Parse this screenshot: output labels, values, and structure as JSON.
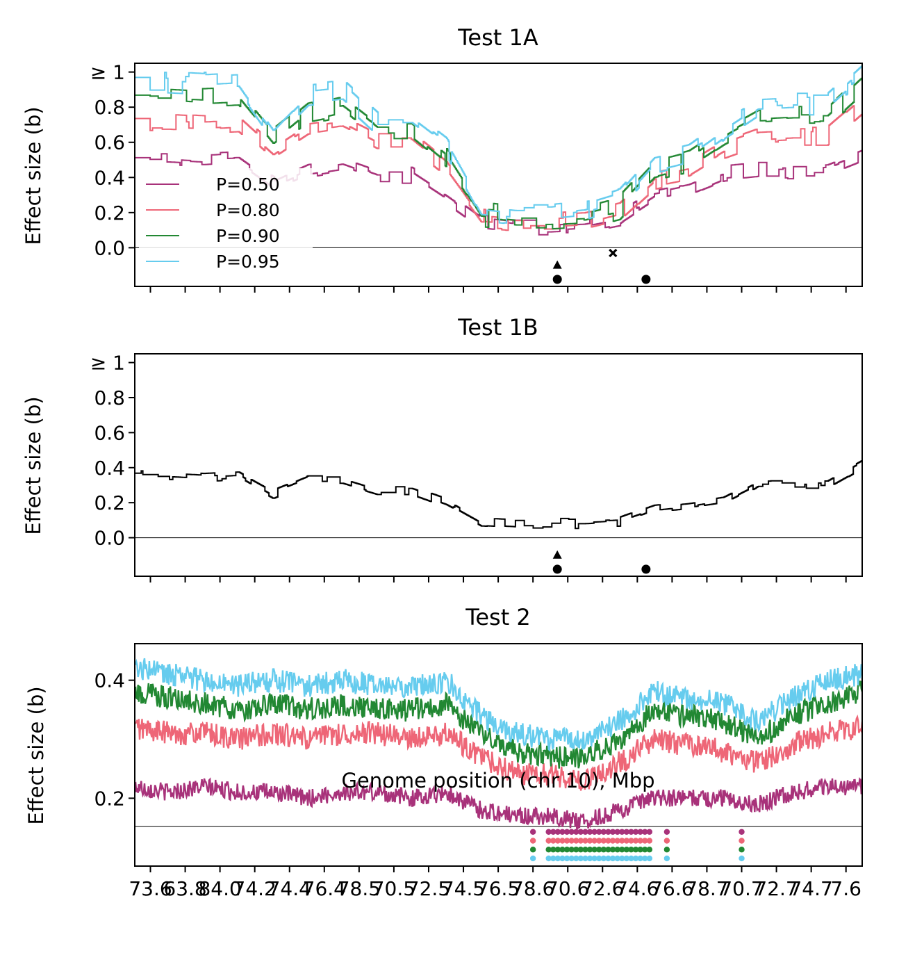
{
  "figure": {
    "xlabel": "Genome position (chr 10), Mbp",
    "x_ticks": [
      "73.6",
      "63.8",
      "84.0",
      "74.2",
      "74.4",
      "76.4",
      "78.5",
      "70.5",
      "72.5",
      "74.5",
      "76.5",
      "78.6",
      "70.6",
      "72.6",
      "74.6",
      "76.6",
      "78.7",
      "70.7",
      "72.7",
      "74.7",
      "7.6"
    ],
    "colors": {
      "p050": "#a8327a",
      "p080": "#ee6677",
      "p090": "#228833",
      "p095": "#66ccee",
      "marker": "#000000"
    }
  },
  "chart_data": [
    {
      "type": "line",
      "title": "Test 1A",
      "ylabel": "Effect size (b)",
      "ylim": [
        -0.22,
        1.05
      ],
      "y_ticks": [
        "≥ 1",
        "0.8",
        "0.6",
        "0.4",
        "0.2",
        "0.0"
      ],
      "y_tick_values": [
        1.0,
        0.8,
        0.6,
        0.4,
        0.2,
        0.0
      ],
      "legend": {
        "placement": "lower-left",
        "entries": [
          "P=0.50",
          "P=0.80",
          "P=0.90",
          "P=0.95"
        ]
      },
      "series": [
        {
          "name": "P=0.50",
          "color_key": "p050",
          "base": [
            0.5,
            0.5,
            0.49,
            0.5,
            0.36,
            0.45,
            0.48,
            0.41,
            0.41,
            0.28,
            0.14,
            0.12,
            0.12,
            0.13,
            0.17,
            0.3,
            0.34,
            0.42,
            0.44,
            0.44,
            0.44,
            0.52
          ],
          "noise": 0.05
        },
        {
          "name": "P=0.80",
          "color_key": "p080",
          "base": [
            0.72,
            0.72,
            0.71,
            0.72,
            0.54,
            0.67,
            0.7,
            0.6,
            0.6,
            0.44,
            0.17,
            0.15,
            0.15,
            0.16,
            0.21,
            0.39,
            0.43,
            0.55,
            0.62,
            0.63,
            0.63,
            0.8
          ],
          "noise": 0.06
        },
        {
          "name": "P=0.90",
          "color_key": "p090",
          "base": [
            0.85,
            0.85,
            0.84,
            0.85,
            0.61,
            0.77,
            0.81,
            0.66,
            0.66,
            0.5,
            0.19,
            0.17,
            0.17,
            0.18,
            0.23,
            0.44,
            0.49,
            0.62,
            0.73,
            0.74,
            0.74,
            0.92
          ],
          "noise": 0.07
        },
        {
          "name": "P=0.95",
          "color_key": "p095",
          "base": [
            0.95,
            0.95,
            0.94,
            0.95,
            0.67,
            0.87,
            0.89,
            0.71,
            0.71,
            0.56,
            0.21,
            0.19,
            0.19,
            0.21,
            0.27,
            0.49,
            0.54,
            0.68,
            0.81,
            0.82,
            0.82,
            1.0
          ],
          "noise": 0.07
        }
      ],
      "markers": [
        {
          "shape": "triangle",
          "x": 11.7,
          "y": -0.1
        },
        {
          "shape": "circle",
          "x": 11.7,
          "y": -0.18
        },
        {
          "shape": "x",
          "x": 13.3,
          "y": -0.03
        },
        {
          "shape": "circle",
          "x": 14.25,
          "y": -0.18
        }
      ]
    },
    {
      "type": "line",
      "title": "Test 1B",
      "ylabel": "Effect size (b)",
      "ylim": [
        -0.22,
        1.05
      ],
      "y_ticks": [
        "≥ 1",
        "0.8",
        "0.6",
        "0.4",
        "0.2",
        "0.0"
      ],
      "y_tick_values": [
        1.0,
        0.8,
        0.6,
        0.4,
        0.2,
        0.0
      ],
      "series": [
        {
          "name": "",
          "color_key": "marker",
          "base": [
            0.36,
            0.36,
            0.35,
            0.36,
            0.25,
            0.33,
            0.33,
            0.27,
            0.27,
            0.2,
            0.09,
            0.08,
            0.08,
            0.08,
            0.09,
            0.16,
            0.18,
            0.21,
            0.31,
            0.31,
            0.31,
            0.42
          ],
          "noise": 0.03
        }
      ],
      "markers": [
        {
          "shape": "triangle",
          "x": 11.7,
          "y": -0.1
        },
        {
          "shape": "circle",
          "x": 11.7,
          "y": -0.18
        },
        {
          "shape": "circle",
          "x": 14.25,
          "y": -0.18
        }
      ]
    },
    {
      "type": "line",
      "title": "Test 2",
      "ylabel": "Effect size (b)",
      "ylim": [
        0.085,
        0.462
      ],
      "y_ticks": [
        "0.4",
        "0.2"
      ],
      "y_tick_values": [
        0.4,
        0.2
      ],
      "baseline": 0.152,
      "series": [
        {
          "name": "P=0.50",
          "color_key": "p050",
          "base": [
            0.22,
            0.21,
            0.22,
            0.21,
            0.21,
            0.2,
            0.21,
            0.21,
            0.2,
            0.21,
            0.18,
            0.17,
            0.17,
            0.16,
            0.18,
            0.2,
            0.2,
            0.2,
            0.19,
            0.21,
            0.22,
            0.22
          ],
          "noise": 0.015
        },
        {
          "name": "P=0.80",
          "color_key": "p080",
          "base": [
            0.32,
            0.31,
            0.31,
            0.3,
            0.31,
            0.3,
            0.31,
            0.31,
            0.3,
            0.31,
            0.27,
            0.24,
            0.24,
            0.23,
            0.26,
            0.3,
            0.29,
            0.28,
            0.26,
            0.29,
            0.31,
            0.32
          ],
          "noise": 0.02
        },
        {
          "name": "P=0.90",
          "color_key": "p090",
          "base": [
            0.38,
            0.37,
            0.36,
            0.35,
            0.36,
            0.35,
            0.36,
            0.35,
            0.35,
            0.36,
            0.31,
            0.28,
            0.27,
            0.27,
            0.3,
            0.35,
            0.34,
            0.33,
            0.3,
            0.34,
            0.36,
            0.38
          ],
          "noise": 0.02
        },
        {
          "name": "P=0.95",
          "color_key": "p095",
          "base": [
            0.42,
            0.41,
            0.4,
            0.39,
            0.4,
            0.39,
            0.4,
            0.39,
            0.39,
            0.4,
            0.34,
            0.31,
            0.3,
            0.3,
            0.33,
            0.38,
            0.37,
            0.36,
            0.33,
            0.37,
            0.4,
            0.41
          ],
          "noise": 0.02
        }
      ],
      "dot_rows": [
        {
          "color_key": "p050",
          "y": 0.143,
          "ranges": [
            [
              11.0,
              11.0
            ],
            [
              11.45,
              14.35
            ],
            [
              14.85,
              14.85
            ],
            [
              17.0,
              17.0
            ]
          ]
        },
        {
          "color_key": "p080",
          "y": 0.128,
          "ranges": [
            [
              11.0,
              11.0
            ],
            [
              11.45,
              14.35
            ],
            [
              14.85,
              14.85
            ],
            [
              17.0,
              17.0
            ]
          ]
        },
        {
          "color_key": "p090",
          "y": 0.113,
          "ranges": [
            [
              11.0,
              11.0
            ],
            [
              11.45,
              14.35
            ],
            [
              14.85,
              14.85
            ],
            [
              17.0,
              17.0
            ]
          ]
        },
        {
          "color_key": "p095",
          "y": 0.098,
          "ranges": [
            [
              11.0,
              11.0
            ],
            [
              11.45,
              14.35
            ],
            [
              14.85,
              14.85
            ],
            [
              17.0,
              17.0
            ]
          ]
        }
      ]
    }
  ]
}
